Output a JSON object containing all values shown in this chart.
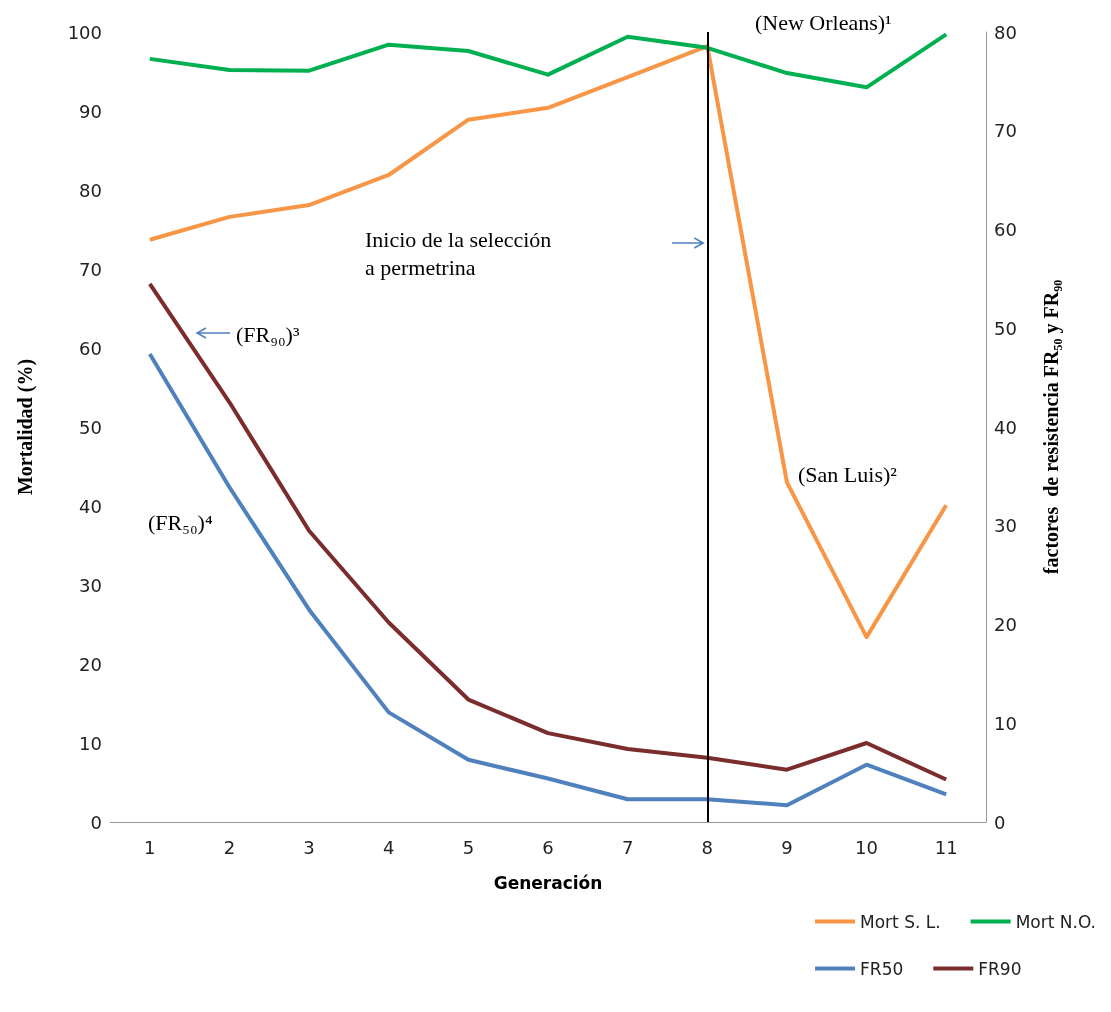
{
  "chart_data": {
    "type": "line",
    "xlabel": "Generación",
    "ylabel": "Mortalidad (%)",
    "y2label": "factores  de resistencia FR₅₀ y FR₉₀",
    "categories": [
      "1",
      "2",
      "3",
      "4",
      "5",
      "6",
      "7",
      "8",
      "9",
      "10",
      "11"
    ],
    "series": [
      {
        "name": "Mort S. L.",
        "color": "#f79646",
        "values": [
          73.7,
          76.6,
          78.1,
          81.9,
          88.9,
          90.4,
          94.3,
          98.2,
          43.0,
          23.4,
          40.1
        ]
      },
      {
        "name": "Mort N.O.",
        "color": "#00b050",
        "values": [
          96.6,
          95.2,
          95.1,
          98.4,
          97.6,
          94.6,
          99.4,
          98.0,
          94.8,
          93.0,
          99.7
        ]
      },
      {
        "name": "FR50",
        "color": "#4f81bd",
        "axis": "y2",
        "values": [
          47.4,
          33.9,
          21.5,
          11.1,
          6.3,
          4.4,
          2.3,
          2.3,
          1.7,
          5.8,
          2.8
        ]
      },
      {
        "name": "FR90",
        "color": "#7b2c2c",
        "axis": "y2",
        "values": [
          54.5,
          42.5,
          29.5,
          20.2,
          12.4,
          9.0,
          7.4,
          6.5,
          5.3,
          8.0,
          4.3
        ]
      }
    ],
    "ylim": [
      0,
      100
    ],
    "yticks": [
      0,
      10,
      20,
      30,
      40,
      50,
      60,
      70,
      80,
      90,
      100
    ],
    "y2lim": [
      0,
      80
    ],
    "y2ticks": [
      0,
      10,
      20,
      30,
      40,
      50,
      60,
      70,
      80
    ],
    "ref_lines": [
      {
        "axis": "x",
        "value": "8",
        "color": "#000000"
      }
    ],
    "annotations": [
      "(New Orleans)¹",
      "Inicio de la selección\na permetrina",
      "(FR₉₀)³",
      "(FR₅₀)⁴",
      "(San Luis)²"
    ],
    "legend": "bottom right",
    "grid": false,
    "marker": "none",
    "line_style": "solid"
  }
}
